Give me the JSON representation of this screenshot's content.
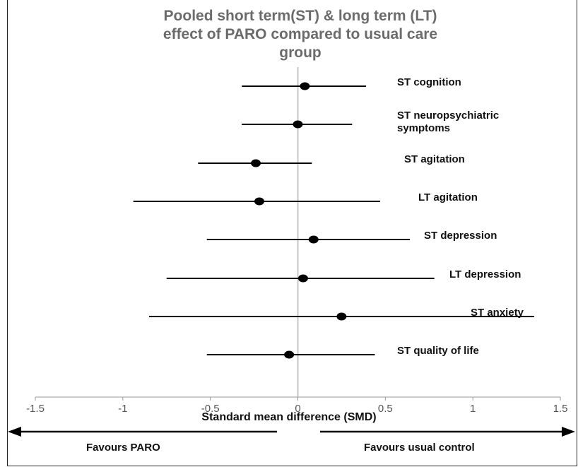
{
  "chart_data": {
    "type": "forest",
    "title": "Pooled short term(ST) & long term (LT)\neffect of PARO compared to usual care\ngroup",
    "xlabel": "Standard mean difference (SMD)",
    "xlim": [
      -1.5,
      1.5
    ],
    "x_ticks": [
      "-1.5",
      "-1",
      "-0.5",
      "0",
      "0.5",
      "1",
      "1.5"
    ],
    "reference_line": 0,
    "rows": [
      {
        "label": "ST cognition",
        "estimate": 0.04,
        "lower": -0.32,
        "upper": 0.39
      },
      {
        "label": "ST neuropsychiatric\nsymptoms",
        "estimate": 0.0,
        "lower": -0.32,
        "upper": 0.31
      },
      {
        "label": "ST agitation",
        "estimate": -0.24,
        "lower": -0.57,
        "upper": 0.08
      },
      {
        "label": "LT agitation",
        "estimate": -0.22,
        "lower": -0.94,
        "upper": 0.47
      },
      {
        "label": "ST depression",
        "estimate": 0.09,
        "lower": -0.52,
        "upper": 0.64
      },
      {
        "label": "LT depression",
        "estimate": 0.03,
        "lower": -0.75,
        "upper": 0.78
      },
      {
        "label": "ST anxiety",
        "estimate": 0.25,
        "lower": -0.85,
        "upper": 1.35
      },
      {
        "label": "ST quality of life",
        "estimate": -0.05,
        "lower": -0.52,
        "upper": 0.44
      }
    ],
    "favours_left": "Favours PARO",
    "favours_right": "Favours usual control"
  }
}
